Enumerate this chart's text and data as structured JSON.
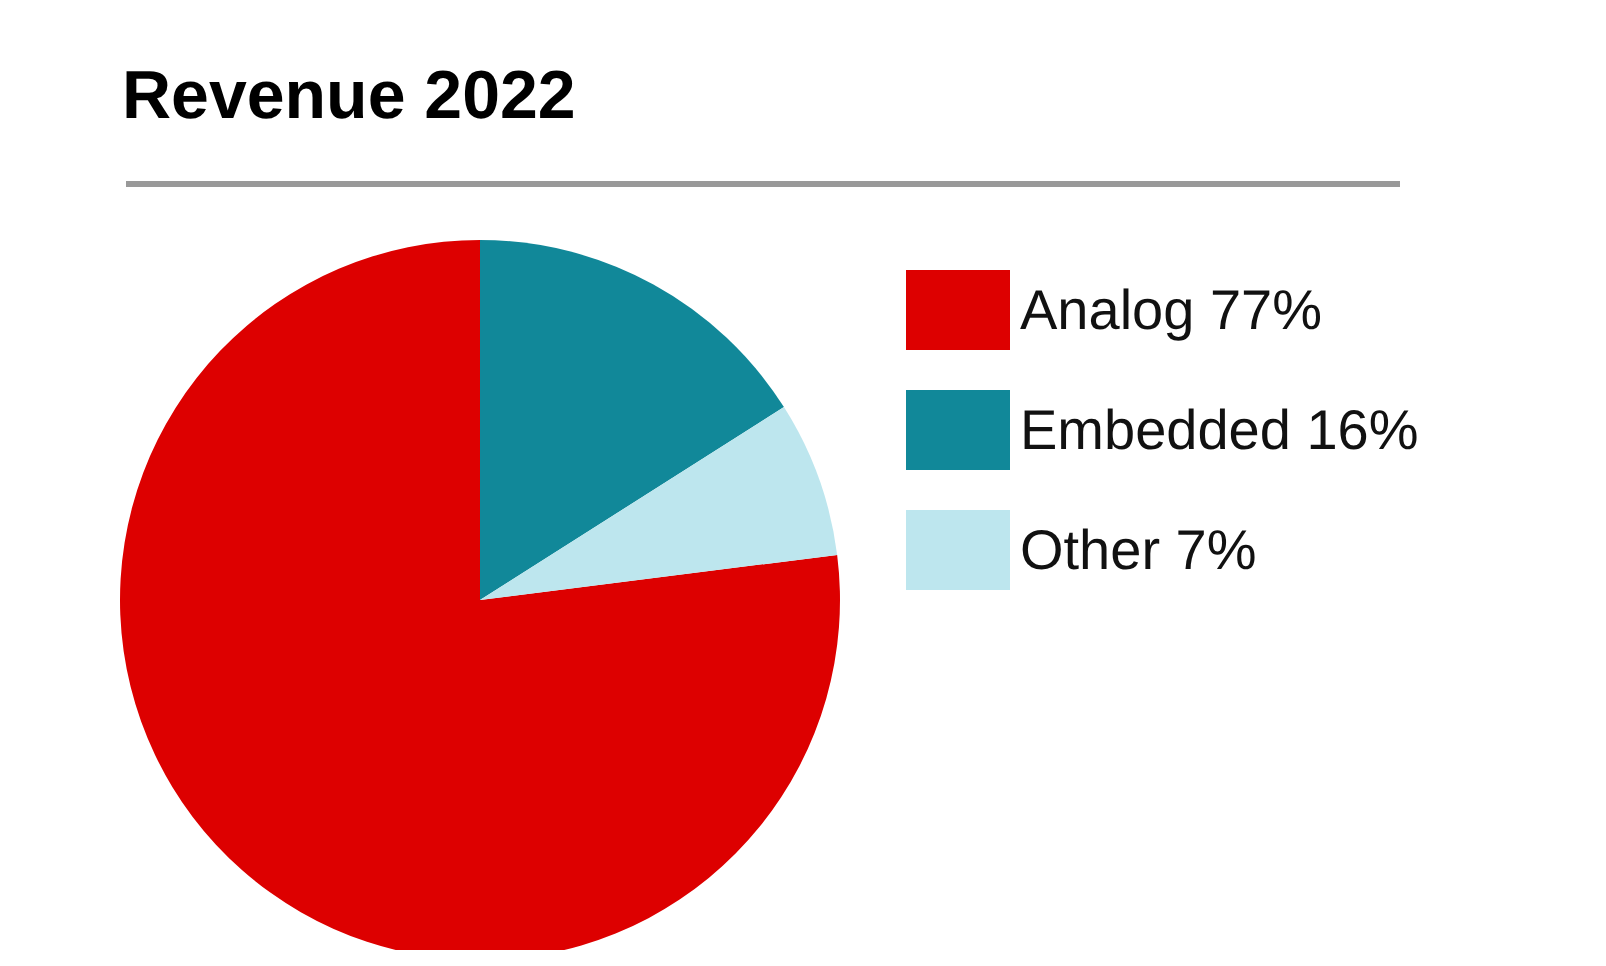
{
  "chart_data": {
    "type": "pie",
    "title": "Revenue 2022",
    "categories": [
      "Analog",
      "Embedded",
      "Other"
    ],
    "values": [
      77,
      16,
      7
    ],
    "value_labels": [
      "77%",
      "16%",
      "7%"
    ],
    "colors": [
      "#dd0000",
      "#118899",
      "#bde6ee"
    ],
    "legend": "right"
  }
}
